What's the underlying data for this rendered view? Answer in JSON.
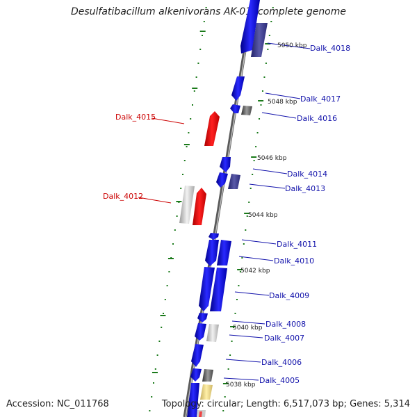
{
  "title": "Desulfatibacillum alkenivorans AK-01, complete genome",
  "accession": "Accession: NC_011768",
  "topology": "Topology: circular; Length: 6,517,073 bp; Genes: 5,314",
  "colors": {
    "forward_gene": "#1010ee",
    "reverse_gene": "#ee1010",
    "label_forward": "#1010aa",
    "label_reverse": "#cc0000",
    "backbone": "#888888",
    "tick": "#1a7a1a"
  },
  "kbp_markers": [
    "5050 kbp",
    "5048 kbp",
    "5046 kbp",
    "5044 kbp",
    "5042 kbp",
    "5040 kbp",
    "5038 kbp"
  ],
  "genes": [
    {
      "label": "Dalk_4018",
      "strand": "forward"
    },
    {
      "label": "Dalk_4017",
      "strand": "forward"
    },
    {
      "label": "Dalk_4016",
      "strand": "forward"
    },
    {
      "label": "Dalk_4015",
      "strand": "reverse"
    },
    {
      "label": "Dalk_4014",
      "strand": "forward"
    },
    {
      "label": "Dalk_4013",
      "strand": "forward"
    },
    {
      "label": "Dalk_4012",
      "strand": "reverse"
    },
    {
      "label": "Dalk_4011",
      "strand": "forward"
    },
    {
      "label": "Dalk_4010",
      "strand": "forward"
    },
    {
      "label": "Dalk_4009",
      "strand": "forward"
    },
    {
      "label": "Dalk_4008",
      "strand": "forward"
    },
    {
      "label": "Dalk_4007",
      "strand": "forward"
    },
    {
      "label": "Dalk_4006",
      "strand": "forward"
    },
    {
      "label": "Dalk_4005",
      "strand": "forward"
    }
  ]
}
